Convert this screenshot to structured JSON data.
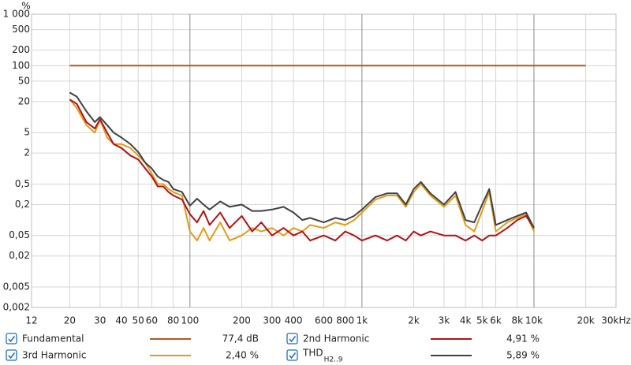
{
  "chart_data": {
    "type": "line",
    "y_label": "%",
    "log_x": true,
    "log_y": true,
    "grid": true,
    "xlim": [
      12,
      30000
    ],
    "ylim": [
      0.002,
      1000
    ],
    "xticks": [
      12,
      20,
      30,
      40,
      50,
      60,
      80,
      100,
      200,
      300,
      400,
      600,
      800,
      {
        "value": 1000,
        "label": "1k"
      },
      {
        "value": 2000,
        "label": "2k"
      },
      {
        "value": 3000,
        "label": "3k"
      },
      {
        "value": 4000,
        "label": "4k"
      },
      {
        "value": 5000,
        "label": "5k"
      },
      {
        "value": 6000,
        "label": "6k"
      },
      {
        "value": 8000,
        "label": "8k"
      },
      {
        "value": 10000,
        "label": "10k"
      },
      {
        "value": 20000,
        "label": "20k"
      },
      {
        "value": 30000,
        "label": "30kHz"
      }
    ],
    "yticks": [
      {
        "value": 1000,
        "label": "1 000"
      },
      500,
      200,
      100,
      50,
      20,
      5,
      2,
      {
        "value": 0.5,
        "label": "0,5"
      },
      {
        "value": 0.2,
        "label": "0,2"
      },
      {
        "value": 0.05,
        "label": "0,05"
      },
      {
        "value": 0.02,
        "label": "0,02"
      },
      {
        "value": 0.005,
        "label": "0,005"
      },
      {
        "value": 0.002,
        "label": "0,002"
      }
    ],
    "series": [
      {
        "name": "Fundamental",
        "color": "#b5581f",
        "summary": 77.4,
        "summary_label": "77,4 dB",
        "x": [
          20,
          20000
        ],
        "values": [
          100,
          100
        ]
      },
      {
        "name": "2nd Harmonic",
        "color": "#b80f0f",
        "summary": 4.91,
        "summary_label": "4,91 %",
        "x": [
          20,
          22,
          25,
          28,
          30,
          33,
          36,
          40,
          45,
          50,
          55,
          60,
          65,
          70,
          75,
          80,
          90,
          100,
          110,
          120,
          130,
          150,
          170,
          200,
          230,
          260,
          300,
          350,
          400,
          450,
          500,
          600,
          700,
          800,
          900,
          1000,
          1200,
          1400,
          1600,
          1800,
          2000,
          2200,
          2500,
          3000,
          3500,
          4000,
          4500,
          5000,
          5500,
          6000,
          7000,
          8000,
          9000,
          10000
        ],
        "values": [
          22,
          18,
          8,
          6,
          9,
          5,
          3,
          2.5,
          1.8,
          1.5,
          1.0,
          0.7,
          0.45,
          0.45,
          0.35,
          0.3,
          0.25,
          0.13,
          0.09,
          0.15,
          0.08,
          0.14,
          0.07,
          0.12,
          0.06,
          0.09,
          0.05,
          0.07,
          0.05,
          0.06,
          0.04,
          0.05,
          0.04,
          0.06,
          0.05,
          0.04,
          0.05,
          0.04,
          0.05,
          0.04,
          0.06,
          0.05,
          0.06,
          0.05,
          0.05,
          0.04,
          0.05,
          0.04,
          0.05,
          0.05,
          0.07,
          0.1,
          0.12,
          0.07
        ]
      },
      {
        "name": "3rd Harmonic",
        "color": "#e39c16",
        "summary": 2.4,
        "summary_label": "2,40 %",
        "x": [
          20,
          22,
          25,
          28,
          30,
          33,
          36,
          40,
          45,
          50,
          55,
          60,
          65,
          70,
          75,
          80,
          90,
          100,
          110,
          120,
          130,
          150,
          170,
          200,
          230,
          260,
          300,
          350,
          400,
          450,
          500,
          600,
          700,
          800,
          900,
          1000,
          1200,
          1400,
          1600,
          1800,
          2000,
          2200,
          2500,
          3000,
          3500,
          4000,
          4500,
          5000,
          5500,
          6000,
          7000,
          8000,
          9000,
          10000
        ],
        "values": [
          22,
          15,
          7,
          5,
          9,
          4,
          3,
          3,
          2.5,
          1.8,
          1.3,
          0.8,
          0.5,
          0.5,
          0.4,
          0.35,
          0.3,
          0.06,
          0.04,
          0.07,
          0.04,
          0.09,
          0.04,
          0.05,
          0.07,
          0.06,
          0.07,
          0.05,
          0.07,
          0.06,
          0.08,
          0.07,
          0.09,
          0.08,
          0.1,
          0.14,
          0.25,
          0.3,
          0.3,
          0.18,
          0.35,
          0.5,
          0.3,
          0.18,
          0.3,
          0.08,
          0.06,
          0.15,
          0.35,
          0.06,
          0.09,
          0.11,
          0.13,
          0.06
        ]
      },
      {
        "name": "THD",
        "name_subscript": "H2..9",
        "color": "#404040",
        "summary": 5.89,
        "summary_label": "5,89 %",
        "x": [
          20,
          22,
          25,
          28,
          30,
          33,
          36,
          40,
          45,
          50,
          55,
          60,
          65,
          70,
          75,
          80,
          90,
          100,
          110,
          120,
          130,
          150,
          170,
          200,
          230,
          260,
          300,
          350,
          400,
          450,
          500,
          600,
          700,
          800,
          900,
          1000,
          1200,
          1400,
          1600,
          1800,
          2000,
          2200,
          2500,
          3000,
          3500,
          4000,
          4500,
          5000,
          5500,
          6000,
          7000,
          8000,
          9000,
          10000
        ],
        "values": [
          30,
          25,
          13,
          8,
          10,
          7,
          5,
          4,
          3,
          2.1,
          1.3,
          1.0,
          0.7,
          0.6,
          0.55,
          0.4,
          0.35,
          0.19,
          0.26,
          0.2,
          0.16,
          0.23,
          0.18,
          0.2,
          0.15,
          0.15,
          0.16,
          0.18,
          0.14,
          0.1,
          0.11,
          0.09,
          0.11,
          0.1,
          0.12,
          0.16,
          0.28,
          0.33,
          0.33,
          0.2,
          0.4,
          0.55,
          0.33,
          0.2,
          0.35,
          0.1,
          0.09,
          0.2,
          0.4,
          0.08,
          0.1,
          0.12,
          0.14,
          0.07
        ]
      }
    ]
  }
}
